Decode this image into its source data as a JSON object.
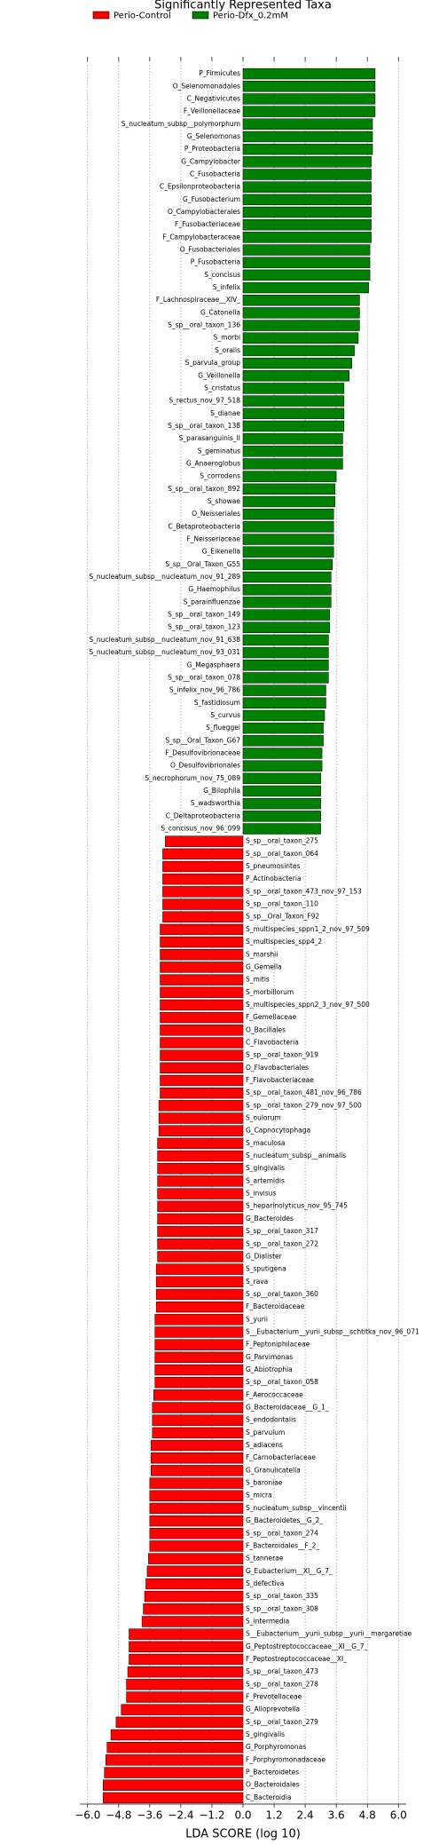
{
  "chart_data": {
    "type": "barh",
    "title": "Significantly Represented Taxa",
    "xlabel": "LDA SCORE (log 10)",
    "categories": [
      "P_Firmicutes",
      "O_Selenomonadales",
      "C_Negativicutes",
      "F_Veillonellaceae",
      "S_nucleatum_subsp__polymorphum",
      "G_Selenomonas",
      "P_Proteobacteria",
      "G_Campylobacter",
      "C_Fusobacteria",
      "C_Epsilonproteobacteria",
      "G_Fusobacterium",
      "O_Campylobacterales",
      "F_Fusobacteriaceae",
      "F_Campylobacteraceae",
      "O_Fusobacteriales",
      "P_Fusobacteria",
      "S_concisus",
      "S_infelix",
      "F_Lachnospiraceae__XIV_",
      "G_Catonella",
      "S_sp__oral_taxon_136",
      "S_morbi",
      "S_oralis",
      "S_parvula_group",
      "G_Veillonella",
      "S_cristatus",
      "S_rectus_nov_97_518",
      "S_dianae",
      "S_sp__oral_taxon_138",
      "S_parasanguinis_II",
      "S_geminatus",
      "G_Anaeroglobus",
      "S_corrodens",
      "S_sp__oral_taxon_892",
      "S_showae",
      "O_Neisseriales",
      "C_Betaproteobacteria",
      "F_Neisseriaceae",
      "G_Eikenella",
      "S_sp__Oral_Taxon_G55",
      "S_nucleatum_subsp__nucleatum_nov_91_289",
      "G_Haemophilus",
      "S_parainfluenzae",
      "S_sp__oral_taxon_149",
      "S_sp__oral_taxon_123",
      "S_nucleatum_subsp__nucleatum_nov_91_638",
      "S_nucleatum_subsp__nucleatum_nov_93_031",
      "G_Megasphaera",
      "S_sp__oral_taxon_078",
      "S_infelix_nov_96_786",
      "S_fastidiosum",
      "S_curvus",
      "S_flueggei",
      "S_sp__Oral_Taxon_G67",
      "F_Desulfovibrionaceae",
      "O_Desulfovibrionales",
      "S_necrophorum_nov_75_089",
      "G_Bilophila",
      "S_wadsworthia",
      "C_Deltaproteobacteria",
      "S_concisus_nov_96_099",
      "S_sp__oral_taxon_275",
      "S_sp__oral_taxon_064",
      "S_pneumosintes",
      "P_Actinobacteria",
      "S_sp__oral_taxon_473_nov_97_153",
      "S_sp__oral_taxon_110",
      "S_sp__Oral_Taxon_F92",
      "S_multispecies_sppn1_2_nov_97_509",
      "S_multispecies_spp4_2",
      "S_marshii",
      "G_Gemella",
      "S_mitis",
      "S_morbillorum",
      "S_multispecies_sppn2_3_nov_97_500",
      "F_Gemellaceae",
      "O_Bacillales",
      "C_Flavobacteria",
      "S_sp__oral_taxon_919",
      "O_Flavobacteriales",
      "F_Flavobacteriaceae",
      "S_sp__oral_taxon_481_nov_96_786",
      "S_sp__oral_taxon_279_nov_97_500",
      "S_oulorum",
      "G_Capnocytophaga",
      "S_maculosa",
      "S_nucleatum_subsp__animalis",
      "S_gingivalis",
      "S_artemidis",
      "S_invisus",
      "S_heparinolyticus_nov_95_745",
      "G_Bacteroides",
      "S_sp__oral_taxon_317",
      "S_sp__oral_taxon_272",
      "G_Dialister",
      "S_sputigena",
      "S_rava",
      "S_sp__oral_taxon_360",
      "F_Bacteroidaceae",
      "S_yurii",
      "S__Eubacterium__yurii_subsp__schtitka_nov_96_071",
      "F_Peptoniphilaceae",
      "G_Parvimonas",
      "G_Abiotrophia",
      "S_sp__oral_taxon_058",
      "F_Aerococcaceae",
      "G_Bacteroidaceae__G_1_",
      "S_endodontalis",
      "S_parvulum",
      "S_adiacens",
      "F_Carnobacteriaceae",
      "G_Granulicatella",
      "S_baroniae",
      "S_micra",
      "S_nucleatum_subsp__vincentii",
      "G_Bacteroidetes__G_2_",
      "S_sp__oral_taxon_274",
      "F_Bacteroidales__F_2_",
      "S_tannerae",
      "G_Eubacterium__XI__G_7_",
      "S_defectiva",
      "S_sp__oral_taxon_335",
      "S_sp__oral_taxon_308",
      "S_intermedia",
      "S__Eubacterium__yurii_subsp__yurii__margaretiae",
      "G_Peptostreptococcaceae__XI__G_7_",
      "F_Peptostreptococcaceae__XI_",
      "S_sp__oral_taxon_473",
      "S_sp__oral_taxon_278",
      "F_Prevotellaceae",
      "G_Alloprevotella",
      "S_sp__oral_taxon_279",
      "S_gingivalis",
      "G_Porphyromonas",
      "F_Porphyromonadaceae",
      "P_Bacteroidetes",
      "O_Bacteroidales",
      "C_Bacteroidia"
    ],
    "series": [
      {
        "name": "Perio-Control",
        "color": "#ff0000",
        "values": [
          null,
          null,
          null,
          null,
          null,
          null,
          null,
          null,
          null,
          null,
          null,
          null,
          null,
          null,
          null,
          null,
          null,
          null,
          null,
          null,
          null,
          null,
          null,
          null,
          null,
          null,
          null,
          null,
          null,
          null,
          null,
          null,
          null,
          null,
          null,
          null,
          null,
          null,
          null,
          null,
          null,
          null,
          null,
          null,
          null,
          null,
          null,
          null,
          null,
          null,
          null,
          null,
          null,
          null,
          null,
          null,
          null,
          null,
          null,
          null,
          null,
          -3.0,
          -3.1,
          -3.1,
          -3.1,
          -3.1,
          -3.1,
          -3.1,
          -3.2,
          -3.2,
          -3.2,
          -3.2,
          -3.2,
          -3.2,
          -3.2,
          -3.2,
          -3.2,
          -3.2,
          -3.2,
          -3.2,
          -3.2,
          -3.2,
          -3.25,
          -3.25,
          -3.25,
          -3.3,
          -3.3,
          -3.3,
          -3.3,
          -3.3,
          -3.3,
          -3.3,
          -3.3,
          -3.3,
          -3.3,
          -3.35,
          -3.35,
          -3.35,
          -3.35,
          -3.4,
          -3.4,
          -3.4,
          -3.4,
          -3.4,
          -3.4,
          -3.45,
          -3.5,
          -3.5,
          -3.5,
          -3.55,
          -3.55,
          -3.55,
          -3.6,
          -3.6,
          -3.6,
          -3.6,
          -3.6,
          -3.6,
          -3.65,
          -3.7,
          -3.75,
          -3.8,
          -3.85,
          -3.9,
          -4.4,
          -4.4,
          -4.4,
          -4.45,
          -4.5,
          -4.5,
          -4.7,
          -4.9,
          -5.1,
          -5.25,
          -5.3,
          -5.35,
          -5.4,
          -5.4
        ]
      },
      {
        "name": "Perio-Dfx_0.2mM",
        "color": "#008000",
        "values": [
          5.1,
          5.1,
          5.1,
          5.1,
          5.0,
          5.0,
          5.0,
          4.95,
          4.95,
          4.95,
          4.95,
          4.95,
          4.95,
          4.95,
          4.9,
          4.9,
          4.9,
          4.85,
          4.5,
          4.5,
          4.5,
          4.45,
          4.3,
          4.2,
          4.1,
          3.9,
          3.9,
          3.9,
          3.9,
          3.85,
          3.85,
          3.85,
          3.6,
          3.55,
          3.55,
          3.5,
          3.5,
          3.5,
          3.5,
          3.45,
          3.4,
          3.4,
          3.4,
          3.35,
          3.35,
          3.3,
          3.3,
          3.3,
          3.3,
          3.2,
          3.2,
          3.15,
          3.1,
          3.1,
          3.05,
          3.05,
          3.0,
          3.0,
          3.0,
          3.0,
          3.0,
          null,
          null,
          null,
          null,
          null,
          null,
          null,
          null,
          null,
          null,
          null,
          null,
          null,
          null,
          null,
          null,
          null,
          null,
          null,
          null,
          null,
          null,
          null,
          null,
          null,
          null,
          null,
          null,
          null,
          null,
          null,
          null,
          null,
          null,
          null,
          null,
          null,
          null,
          null,
          null,
          null,
          null,
          null,
          null,
          null,
          null,
          null,
          null,
          null,
          null,
          null,
          null,
          null,
          null,
          null,
          null,
          null,
          null,
          null,
          null,
          null,
          null,
          null,
          null,
          null,
          null,
          null,
          null,
          null,
          null,
          null,
          null,
          null,
          null,
          null,
          null,
          null
        ]
      }
    ],
    "xlim": [
      -6.3,
      6.3
    ],
    "xticks": [
      {
        "value": -6,
        "label": "−6.0"
      },
      {
        "value": -4.8,
        "label": "−4.8"
      },
      {
        "value": -3.6,
        "label": "−3.6"
      },
      {
        "value": -2.4,
        "label": "−2.4"
      },
      {
        "value": -1.2,
        "label": "−1.2"
      },
      {
        "value": 0,
        "label": "0.0"
      },
      1.2,
      2.4,
      3.6,
      4.8,
      {
        "value": 6,
        "label": "6.0"
      }
    ],
    "grid": true
  }
}
